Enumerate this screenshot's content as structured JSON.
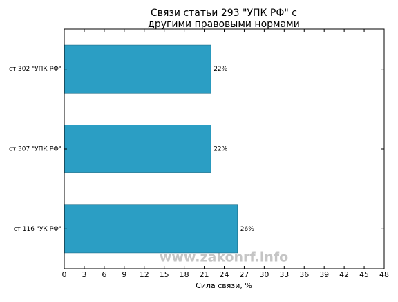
{
  "chart_data": {
    "type": "barh",
    "title": [
      "Связи статьи 293 \"УПК РФ\" с",
      "другими правовыми нормами"
    ],
    "categories": [
      "ст 302 \"УПК РФ\"",
      "ст 307 \"УПК РФ\"",
      "ст 116 \"УК РФ\""
    ],
    "values": [
      22,
      22,
      26
    ],
    "value_labels": [
      "22%",
      "22%",
      "26%"
    ],
    "color": "#2b9ec4",
    "xlabel": "Сила связи, %",
    "xlim": [
      0,
      48
    ],
    "xticks": [
      0,
      3,
      6,
      9,
      12,
      15,
      18,
      21,
      24,
      27,
      30,
      33,
      36,
      39,
      42,
      45,
      48
    ],
    "watermark": "www.zakonrf.info"
  }
}
